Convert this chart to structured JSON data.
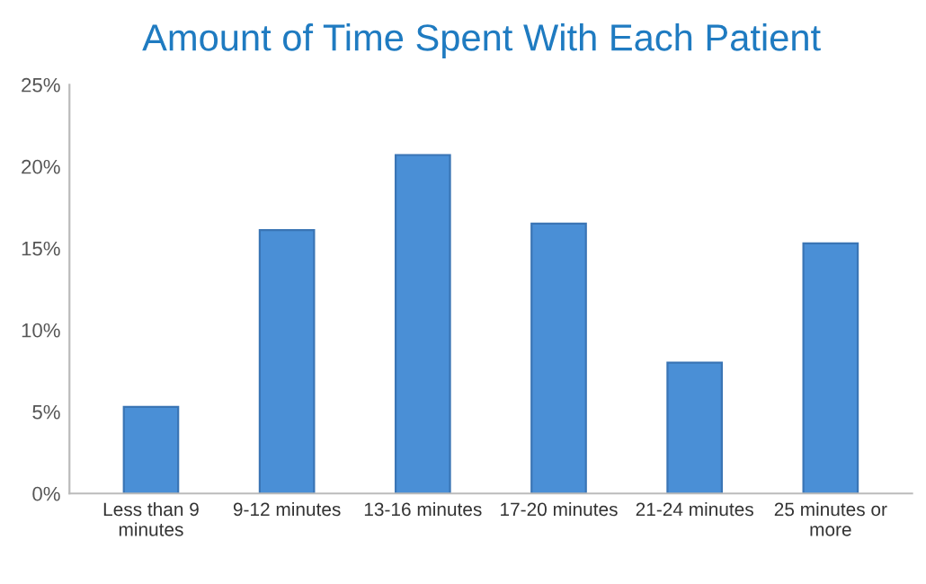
{
  "chart_data": {
    "type": "bar",
    "title": "Amount of Time Spent With Each Patient",
    "categories": [
      "Less than 9\nminutes",
      "9-12 minutes",
      "13-16 minutes",
      "17-20 minutes",
      "21-24 minutes",
      "25 minutes or\nmore"
    ],
    "values": [
      5.3,
      16.1,
      20.7,
      16.5,
      8.0,
      15.3
    ],
    "color": "#4a8fd6",
    "ylim": [
      0,
      25
    ],
    "yticks": [
      {
        "value": 0,
        "label": "0%"
      },
      {
        "value": 5,
        "label": "5%"
      },
      {
        "value": 10,
        "label": "10%"
      },
      {
        "value": 15,
        "label": "15%"
      },
      {
        "value": 20,
        "label": "20%"
      },
      {
        "value": 25,
        "label": "25%"
      }
    ],
    "grid": false,
    "legend": false
  }
}
